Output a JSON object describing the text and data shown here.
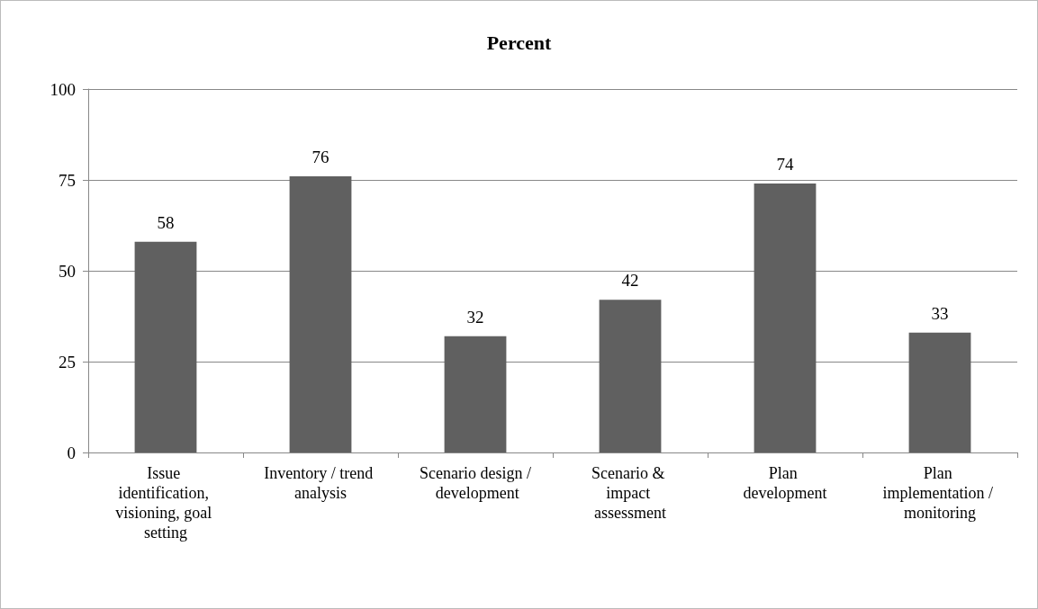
{
  "chart_data": {
    "type": "bar",
    "title": "Percent",
    "categories": [
      "Issue identification, visioning, goal setting",
      "Inventory / trend analysis",
      "Scenario design / development",
      "Scenario & impact assessment",
      "Plan development",
      "Plan implementation / monitoring"
    ],
    "values": [
      58,
      76,
      32,
      42,
      74,
      33
    ],
    "color": "#606060",
    "ylim": [
      0,
      100
    ],
    "yticks": [
      0,
      25,
      50,
      75,
      100
    ],
    "grid": "y",
    "data_labels": true
  }
}
